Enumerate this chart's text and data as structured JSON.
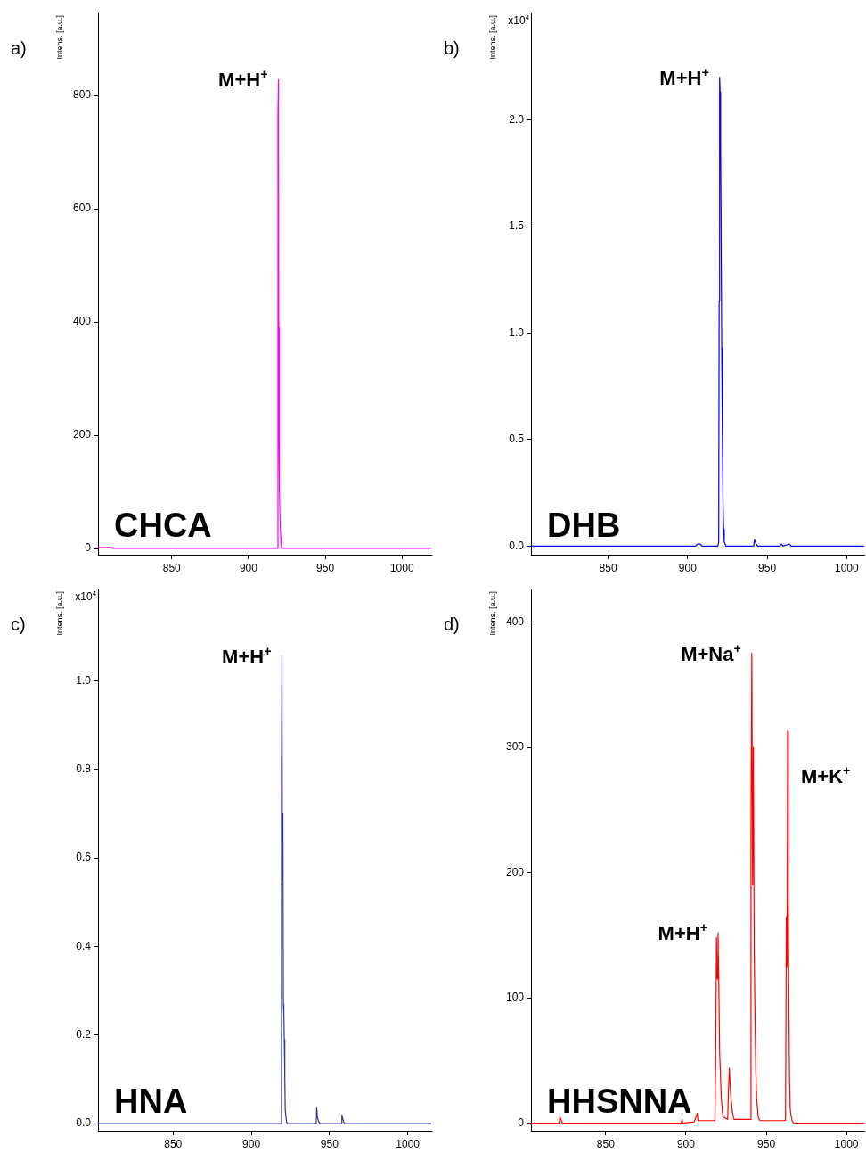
{
  "chart_data": [
    {
      "type": "line",
      "title": "a)",
      "subtitle": "CHCA",
      "ylabel": "Intens. [a.u.]",
      "color": "#ff00ff",
      "xlim": [
        802,
        1019
      ],
      "ylim": [
        -11,
        945
      ],
      "xticks": [
        850,
        900,
        950,
        1000
      ],
      "yticks": [
        0,
        200,
        400,
        600,
        800
      ],
      "grid": false,
      "legend": false,
      "x": [
        802,
        811,
        811.5,
        919,
        919.2,
        919.5,
        919.8,
        920,
        920.3,
        920.6,
        921,
        921.5,
        1019
      ],
      "values": [
        2,
        2,
        0,
        0,
        770,
        828,
        215,
        390,
        100,
        45,
        20,
        0,
        0
      ],
      "annotations": [
        {
          "text": "M+H$^{+}$",
          "x": 919.5,
          "y": 828
        }
      ]
    },
    {
      "type": "line",
      "title": "b)",
      "subtitle": "DHB",
      "ylabel": "Intens. [a.u.]",
      "color": "#0000ff",
      "xlim": [
        801.5,
        1011
      ],
      "ylim": [
        -0.04,
        2.5
      ],
      "xticks": [
        850,
        900,
        950,
        1000
      ],
      "yticks": [
        {
          "value": 0,
          "label": "0.0"
        },
        {
          "value": 0.5,
          "label": "0.5"
        },
        {
          "value": 1,
          "label": "1.0"
        },
        {
          "value": 1.5,
          "label": "1.5"
        },
        {
          "value": 2,
          "label": "2.0"
        }
      ],
      "grid": false,
      "legend": false,
      "x": [
        801.5,
        905,
        906,
        908,
        909,
        919,
        919.5,
        919.8,
        920.1,
        920.4,
        920.7,
        921,
        921.4,
        921.8,
        922.2,
        922.6,
        923,
        924,
        941.5,
        942,
        943,
        944,
        958,
        959,
        960,
        964,
        965,
        1011
      ],
      "values": [
        0,
        0,
        0.01,
        0.01,
        0,
        0,
        0.02,
        1.15,
        2.2,
        2.13,
        1.88,
        1.55,
        0.93,
        0.52,
        0.22,
        0.08,
        0.02,
        0,
        0,
        0.03,
        0.01,
        0,
        0,
        0.01,
        0,
        0.01,
        0,
        0
      ],
      "annotations": [
        "x10$^{4}$",
        {
          "text": "M+H$^{+}$",
          "x": 920.1,
          "y": 2.2
        }
      ]
    },
    {
      "type": "line",
      "title": "c)",
      "subtitle": "HNA",
      "ylabel": "Intens. [a.u.]",
      "color": "#333399",
      "xlim": [
        802,
        1015
      ],
      "ylim": [
        -0.016,
        1.206
      ],
      "xticks": [
        850,
        900,
        950,
        1000
      ],
      "yticks": [
        {
          "value": 0,
          "label": "0.0"
        },
        {
          "value": 0.2,
          "label": "0.2"
        },
        {
          "value": 0.4,
          "label": "0.4"
        },
        {
          "value": 0.6,
          "label": "0.6"
        },
        {
          "value": 0.8,
          "label": "0.8"
        },
        {
          "value": 1,
          "label": "1.0"
        }
      ],
      "grid": false,
      "legend": false,
      "x": [
        802,
        919,
        919.3,
        919.6,
        919.9,
        920.2,
        920.5,
        920.8,
        921.1,
        921.4,
        921.7,
        922.5,
        923,
        941.5,
        941.8,
        942.2,
        943,
        944,
        957.5,
        957.9,
        958.5,
        959.5,
        1015
      ],
      "values": [
        0,
        0,
        0.81,
        1.055,
        0.55,
        0.7,
        0.27,
        0.25,
        0.19,
        0.11,
        0.03,
        0.005,
        0,
        0,
        0.037,
        0.015,
        0.005,
        0,
        0,
        0.02,
        0.01,
        0,
        0
      ],
      "annotations": [
        "x10$^{4}$",
        {
          "text": "M+H$^{+}$",
          "x": 919.6,
          "y": 1.055
        }
      ]
    },
    {
      "type": "line",
      "title": "d)",
      "subtitle": "HHSNNA",
      "ylabel": "Intens. [a.u.]",
      "color": "#ff0000",
      "xlim": [
        803.5,
        1011
      ],
      "ylim": [
        -6,
        426
      ],
      "xticks": [
        850,
        900,
        950,
        1000
      ],
      "yticks": [
        0,
        100,
        200,
        300,
        400
      ],
      "grid": false,
      "legend": false,
      "x": [
        803.5,
        821,
        821.5,
        823,
        897,
        897.5,
        898,
        905,
        906,
        907,
        907.5,
        908,
        918,
        918.5,
        919,
        919.5,
        920,
        920.5,
        921,
        921.5,
        922,
        923,
        926,
        926.5,
        927,
        927.5,
        928,
        929,
        930,
        940,
        940.5,
        941,
        941.5,
        942,
        942.5,
        943,
        943.5,
        944,
        945,
        946,
        962,
        962.5,
        963,
        963.3,
        963.7,
        964,
        964.5,
        965,
        966,
        967,
        1011
      ],
      "values": [
        0,
        0,
        5,
        0,
        0,
        3,
        0,
        1,
        4,
        8,
        2,
        2,
        2,
        50,
        148,
        115,
        152,
        105,
        55,
        38,
        20,
        5,
        3,
        28,
        44,
        30,
        20,
        8,
        3,
        3,
        235,
        375,
        190,
        300,
        135,
        85,
        40,
        20,
        5,
        2,
        2,
        165,
        125,
        313,
        182,
        110,
        35,
        10,
        2,
        0,
        0
      ],
      "annotations": [
        {
          "text": "M+Na$^{+}$",
          "x": 941,
          "y": 375
        },
        {
          "text": "M+K$^{+}$",
          "x": 963.3,
          "y": 313
        },
        {
          "text": "M+H$^{+}$",
          "x": 920,
          "y": 152
        }
      ]
    }
  ]
}
